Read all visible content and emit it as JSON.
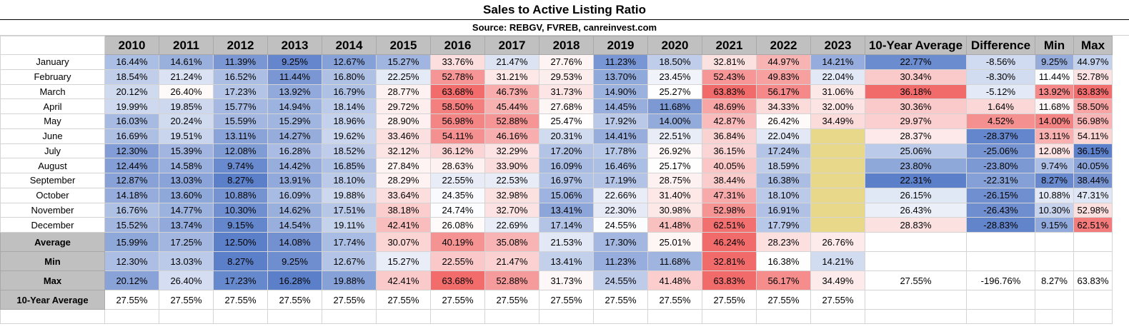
{
  "title": "Sales to Active Listing Ratio",
  "source": "Source: REBGV, FVREB, canreinvest.com",
  "colors": {
    "header_bg": "#c0c0c0",
    "low": "#5b7fc9",
    "mid": "#ffffff",
    "high": "#f26b6b",
    "missing": "#e8d98a"
  },
  "columns": [
    "2010",
    "2011",
    "2012",
    "2013",
    "2014",
    "2015",
    "2016",
    "2017",
    "2018",
    "2019",
    "2020",
    "2021",
    "2022",
    "2023",
    "10-Year Average",
    "Difference",
    "Min",
    "Max"
  ],
  "months": [
    {
      "label": "January",
      "values": [
        "16.44%",
        "14.61%",
        "11.39%",
        "9.25%",
        "12.67%",
        "15.27%",
        "33.76%",
        "21.47%",
        "27.76%",
        "11.23%",
        "18.50%",
        "32.81%",
        "44.97%",
        "14.21%"
      ],
      "avg": "22.77%",
      "diff": "-8.56%",
      "min": "9.25%",
      "max": "44.97%"
    },
    {
      "label": "February",
      "values": [
        "18.54%",
        "21.24%",
        "16.52%",
        "11.44%",
        "16.80%",
        "22.25%",
        "52.78%",
        "31.21%",
        "29.53%",
        "13.70%",
        "23.45%",
        "52.43%",
        "49.83%",
        "22.04%"
      ],
      "avg": "30.34%",
      "diff": "-8.30%",
      "min": "11.44%",
      "max": "52.78%"
    },
    {
      "label": "March",
      "values": [
        "20.12%",
        "26.40%",
        "17.23%",
        "13.92%",
        "16.79%",
        "28.77%",
        "63.68%",
        "46.73%",
        "31.73%",
        "14.90%",
        "25.27%",
        "63.83%",
        "56.17%",
        "31.06%"
      ],
      "avg": "36.18%",
      "diff": "-5.12%",
      "min": "13.92%",
      "max": "63.83%"
    },
    {
      "label": "April",
      "values": [
        "19.99%",
        "19.85%",
        "15.77%",
        "14.94%",
        "18.14%",
        "29.72%",
        "58.50%",
        "45.44%",
        "27.68%",
        "14.45%",
        "11.68%",
        "48.69%",
        "34.33%",
        "32.00%"
      ],
      "avg": "30.36%",
      "diff": "1.64%",
      "min": "11.68%",
      "max": "58.50%"
    },
    {
      "label": "May",
      "values": [
        "16.03%",
        "20.24%",
        "15.59%",
        "15.29%",
        "18.96%",
        "28.90%",
        "56.98%",
        "52.88%",
        "25.47%",
        "17.92%",
        "14.00%",
        "42.87%",
        "26.42%",
        "34.49%"
      ],
      "avg": "29.97%",
      "diff": "4.52%",
      "min": "14.00%",
      "max": "56.98%"
    },
    {
      "label": "June",
      "values": [
        "16.69%",
        "19.51%",
        "13.11%",
        "14.27%",
        "19.62%",
        "33.46%",
        "54.11%",
        "46.16%",
        "20.31%",
        "14.41%",
        "22.51%",
        "36.84%",
        "22.04%",
        ""
      ],
      "avg": "28.37%",
      "diff": "-28.37%",
      "min": "13.11%",
      "max": "54.11%"
    },
    {
      "label": "July",
      "values": [
        "12.30%",
        "15.39%",
        "12.08%",
        "16.28%",
        "18.52%",
        "32.12%",
        "36.12%",
        "32.29%",
        "17.20%",
        "17.78%",
        "26.92%",
        "36.15%",
        "17.24%",
        ""
      ],
      "avg": "25.06%",
      "diff": "-25.06%",
      "min": "12.08%",
      "max": "36.15%"
    },
    {
      "label": "August",
      "values": [
        "12.44%",
        "14.58%",
        "9.74%",
        "14.42%",
        "16.85%",
        "27.84%",
        "28.63%",
        "33.90%",
        "16.09%",
        "16.46%",
        "25.17%",
        "40.05%",
        "18.59%",
        ""
      ],
      "avg": "23.80%",
      "diff": "-23.80%",
      "min": "9.74%",
      "max": "40.05%"
    },
    {
      "label": "September",
      "values": [
        "12.87%",
        "13.03%",
        "8.27%",
        "13.91%",
        "18.10%",
        "28.29%",
        "22.55%",
        "22.53%",
        "16.97%",
        "17.19%",
        "28.75%",
        "38.44%",
        "16.38%",
        ""
      ],
      "avg": "22.31%",
      "diff": "-22.31%",
      "min": "8.27%",
      "max": "38.44%"
    },
    {
      "label": "October",
      "values": [
        "14.18%",
        "13.60%",
        "10.88%",
        "16.09%",
        "19.88%",
        "33.64%",
        "24.35%",
        "32.98%",
        "15.06%",
        "22.66%",
        "31.40%",
        "47.31%",
        "18.10%",
        ""
      ],
      "avg": "26.15%",
      "diff": "-26.15%",
      "min": "10.88%",
      "max": "47.31%"
    },
    {
      "label": "November",
      "values": [
        "16.76%",
        "14.77%",
        "10.30%",
        "14.62%",
        "17.51%",
        "38.18%",
        "24.74%",
        "32.70%",
        "13.41%",
        "22.30%",
        "30.98%",
        "52.98%",
        "16.91%",
        ""
      ],
      "avg": "26.43%",
      "diff": "-26.43%",
      "min": "10.30%",
      "max": "52.98%"
    },
    {
      "label": "December",
      "values": [
        "15.52%",
        "13.74%",
        "9.15%",
        "14.54%",
        "19.11%",
        "42.41%",
        "26.08%",
        "22.69%",
        "17.14%",
        "24.55%",
        "41.48%",
        "62.51%",
        "17.79%",
        ""
      ],
      "avg": "28.83%",
      "diff": "-28.83%",
      "min": "9.15%",
      "max": "62.51%"
    }
  ],
  "summary": [
    {
      "label": "Average",
      "values": [
        "15.99%",
        "17.25%",
        "12.50%",
        "14.08%",
        "17.74%",
        "30.07%",
        "40.19%",
        "35.08%",
        "21.53%",
        "17.30%",
        "25.01%",
        "46.24%",
        "28.23%",
        "26.76%"
      ],
      "avg": "",
      "diff": "",
      "min": "",
      "max": ""
    },
    {
      "label": "Min",
      "values": [
        "12.30%",
        "13.03%",
        "8.27%",
        "9.25%",
        "12.67%",
        "15.27%",
        "22.55%",
        "21.47%",
        "13.41%",
        "11.23%",
        "11.68%",
        "32.81%",
        "16.38%",
        "14.21%"
      ],
      "avg": "",
      "diff": "",
      "min": "",
      "max": ""
    },
    {
      "label": "Max",
      "values": [
        "20.12%",
        "26.40%",
        "17.23%",
        "16.28%",
        "19.88%",
        "42.41%",
        "63.68%",
        "52.88%",
        "31.73%",
        "24.55%",
        "41.48%",
        "63.83%",
        "56.17%",
        "34.49%"
      ],
      "avg": "27.55%",
      "diff": "-196.76%",
      "min": "8.27%",
      "max": "63.83%"
    },
    {
      "label": "10-Year Average",
      "values": [
        "27.55%",
        "27.55%",
        "27.55%",
        "27.55%",
        "27.55%",
        "27.55%",
        "27.55%",
        "27.55%",
        "27.55%",
        "27.55%",
        "27.55%",
        "27.55%",
        "27.55%",
        "27.55%"
      ],
      "avg": "",
      "diff": "",
      "min": "",
      "max": ""
    }
  ]
}
